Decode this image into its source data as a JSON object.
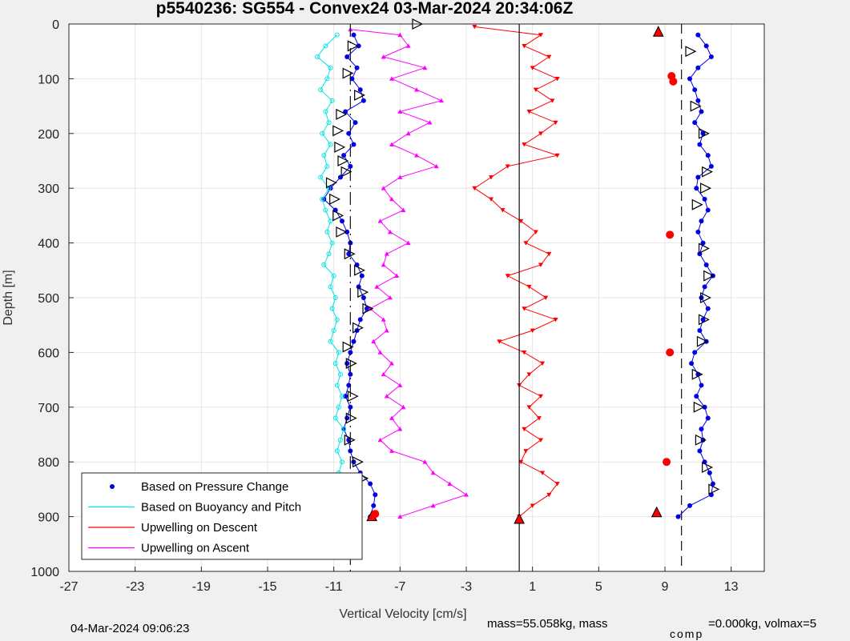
{
  "chart_data": {
    "type": "scatter",
    "title": "p5540236: SG554 - Convex24 03-Mar-2024 20:34:06Z",
    "xlabel": "Vertical Velocity [cm/s]",
    "ylabel": "Depth [m]",
    "xlim": [
      -27,
      15
    ],
    "ylim": [
      0,
      1000
    ],
    "y_reversed": true,
    "grid": true,
    "xticks": [
      -27,
      -23,
      -19,
      -15,
      -11,
      -7,
      -3,
      1,
      5,
      9,
      13
    ],
    "yticks": [
      0,
      100,
      200,
      300,
      400,
      500,
      600,
      700,
      800,
      900,
      1000
    ],
    "reference_lines": [
      {
        "x": -10,
        "style": "dash-dot"
      },
      {
        "x": 0.2,
        "style": "solid"
      },
      {
        "x": 10,
        "style": "dashed"
      }
    ],
    "legend_position": "bottom-left",
    "series": [
      {
        "name": "Based on Pressure Change",
        "color": "#0000e6",
        "marker": "dot",
        "points": [
          [
            -9.8,
            20
          ],
          [
            -9.5,
            40
          ],
          [
            -10.2,
            60
          ],
          [
            -9.6,
            80
          ],
          [
            -9.9,
            100
          ],
          [
            -9.4,
            120
          ],
          [
            -9.2,
            140
          ],
          [
            -10.3,
            160
          ],
          [
            -9.7,
            180
          ],
          [
            -10.1,
            200
          ],
          [
            -9.8,
            220
          ],
          [
            -10.4,
            240
          ],
          [
            -10,
            260
          ],
          [
            -10.6,
            280
          ],
          [
            -11.2,
            300
          ],
          [
            -11.6,
            320
          ],
          [
            -10.9,
            340
          ],
          [
            -10.5,
            360
          ],
          [
            -10.2,
            380
          ],
          [
            -10,
            400
          ],
          [
            -10.1,
            420
          ],
          [
            -9.6,
            440
          ],
          [
            -9.3,
            460
          ],
          [
            -9.5,
            480
          ],
          [
            -9.2,
            500
          ],
          [
            -9,
            520
          ],
          [
            -9.4,
            540
          ],
          [
            -9.6,
            560
          ],
          [
            -9.8,
            580
          ],
          [
            -10,
            600
          ],
          [
            -10.2,
            620
          ],
          [
            -10,
            640
          ],
          [
            -10.1,
            660
          ],
          [
            -10.3,
            680
          ],
          [
            -10,
            700
          ],
          [
            -10.2,
            720
          ],
          [
            -10.4,
            740
          ],
          [
            -10.1,
            760
          ],
          [
            -10,
            780
          ],
          [
            -9.8,
            800
          ],
          [
            -9.4,
            820
          ],
          [
            -8.8,
            840
          ],
          [
            -8.5,
            860
          ],
          [
            -8.6,
            880
          ],
          [
            -8.8,
            900
          ],
          [
            11,
            20
          ],
          [
            11.5,
            40
          ],
          [
            11.8,
            60
          ],
          [
            11,
            80
          ],
          [
            10.5,
            100
          ],
          [
            10.8,
            120
          ],
          [
            11,
            140
          ],
          [
            11.2,
            160
          ],
          [
            10.8,
            180
          ],
          [
            11.3,
            200
          ],
          [
            11.1,
            220
          ],
          [
            11.6,
            240
          ],
          [
            11.8,
            260
          ],
          [
            11,
            280
          ],
          [
            10.9,
            300
          ],
          [
            11.4,
            320
          ],
          [
            11.6,
            340
          ],
          [
            11.2,
            360
          ],
          [
            11,
            380
          ],
          [
            11.3,
            400
          ],
          [
            11.1,
            420
          ],
          [
            11.5,
            440
          ],
          [
            11.9,
            460
          ],
          [
            11.4,
            480
          ],
          [
            11.2,
            500
          ],
          [
            11.6,
            520
          ],
          [
            11.3,
            540
          ],
          [
            11.1,
            560
          ],
          [
            11.5,
            580
          ],
          [
            10.8,
            600
          ],
          [
            10.6,
            620
          ],
          [
            11,
            640
          ],
          [
            11.2,
            660
          ],
          [
            10.9,
            680
          ],
          [
            11.4,
            700
          ],
          [
            11.6,
            720
          ],
          [
            11.2,
            740
          ],
          [
            11.3,
            760
          ],
          [
            11.1,
            780
          ],
          [
            11.4,
            800
          ],
          [
            11.7,
            820
          ],
          [
            11.9,
            840
          ],
          [
            11.8,
            860
          ],
          [
            10.5,
            880
          ],
          [
            9.8,
            900
          ]
        ]
      },
      {
        "name": "Based on Buoyancy and Pitch",
        "color": "#00e5e5",
        "marker": "circle",
        "points": [
          [
            -10.8,
            20
          ],
          [
            -11.5,
            40
          ],
          [
            -12,
            60
          ],
          [
            -11.2,
            80
          ],
          [
            -11.4,
            100
          ],
          [
            -11.8,
            120
          ],
          [
            -11.1,
            140
          ],
          [
            -11.5,
            160
          ],
          [
            -11.3,
            180
          ],
          [
            -11.7,
            200
          ],
          [
            -11.2,
            220
          ],
          [
            -11.6,
            240
          ],
          [
            -11.4,
            260
          ],
          [
            -11.8,
            280
          ],
          [
            -11.3,
            300
          ],
          [
            -11.7,
            320
          ],
          [
            -11.5,
            340
          ],
          [
            -11.2,
            360
          ],
          [
            -11.4,
            380
          ],
          [
            -11.1,
            400
          ],
          [
            -11.3,
            420
          ],
          [
            -11.6,
            440
          ],
          [
            -11,
            460
          ],
          [
            -11.2,
            480
          ],
          [
            -10.9,
            500
          ],
          [
            -11.1,
            520
          ],
          [
            -10.8,
            540
          ],
          [
            -11,
            560
          ],
          [
            -11.2,
            580
          ],
          [
            -10.7,
            600
          ],
          [
            -10.9,
            620
          ],
          [
            -10.6,
            640
          ],
          [
            -10.8,
            660
          ],
          [
            -10.5,
            680
          ],
          [
            -10.7,
            700
          ],
          [
            -10.9,
            720
          ],
          [
            -10.4,
            740
          ],
          [
            -10.6,
            760
          ],
          [
            -10.8,
            780
          ],
          [
            -10.5,
            800
          ],
          [
            -10.7,
            820
          ],
          [
            -10.3,
            840
          ],
          [
            -10.5,
            860
          ],
          [
            -10.4,
            880
          ],
          [
            -10.2,
            900
          ]
        ]
      },
      {
        "name": "Upwelling on Descent",
        "color": "#ff0000",
        "marker": "triangle-down",
        "points": [
          [
            -2.5,
            5
          ],
          [
            1.5,
            20
          ],
          [
            0.5,
            40
          ],
          [
            2,
            60
          ],
          [
            1,
            80
          ],
          [
            2.5,
            100
          ],
          [
            1.2,
            120
          ],
          [
            2.2,
            140
          ],
          [
            0.8,
            160
          ],
          [
            2.4,
            180
          ],
          [
            1.5,
            200
          ],
          [
            0.5,
            220
          ],
          [
            2.5,
            240
          ],
          [
            -0.5,
            260
          ],
          [
            -1.5,
            280
          ],
          [
            -2.5,
            300
          ],
          [
            -1.5,
            320
          ],
          [
            -0.8,
            340
          ],
          [
            0.3,
            360
          ],
          [
            1.2,
            380
          ],
          [
            0.6,
            400
          ],
          [
            2,
            420
          ],
          [
            1.5,
            440
          ],
          [
            -0.5,
            460
          ],
          [
            0.8,
            480
          ],
          [
            1.8,
            500
          ],
          [
            0.5,
            520
          ],
          [
            2.4,
            540
          ],
          [
            1,
            560
          ],
          [
            -1,
            580
          ],
          [
            0.5,
            600
          ],
          [
            1.6,
            620
          ],
          [
            0.8,
            640
          ],
          [
            0.2,
            660
          ],
          [
            1.5,
            680
          ],
          [
            0.8,
            700
          ],
          [
            1.4,
            720
          ],
          [
            0.5,
            740
          ],
          [
            1.5,
            760
          ],
          [
            0.6,
            780
          ],
          [
            0.3,
            800
          ],
          [
            1.6,
            820
          ],
          [
            2.5,
            840
          ],
          [
            2,
            860
          ],
          [
            1,
            880
          ],
          [
            0.2,
            900
          ]
        ]
      },
      {
        "name": "Upwelling on Ascent",
        "color": "#ff00ff",
        "marker": "triangle-up",
        "points": [
          [
            -10,
            10
          ],
          [
            -7,
            20
          ],
          [
            -6.5,
            40
          ],
          [
            -8,
            60
          ],
          [
            -5.5,
            80
          ],
          [
            -7.5,
            100
          ],
          [
            -6,
            120
          ],
          [
            -4.5,
            140
          ],
          [
            -7,
            160
          ],
          [
            -5.2,
            180
          ],
          [
            -6.5,
            200
          ],
          [
            -7.5,
            220
          ],
          [
            -6,
            240
          ],
          [
            -4.8,
            260
          ],
          [
            -7,
            280
          ],
          [
            -8,
            300
          ],
          [
            -7.5,
            320
          ],
          [
            -6.8,
            340
          ],
          [
            -8.2,
            360
          ],
          [
            -7.6,
            380
          ],
          [
            -6.5,
            400
          ],
          [
            -7.8,
            420
          ],
          [
            -8,
            440
          ],
          [
            -7.2,
            460
          ],
          [
            -8.4,
            480
          ],
          [
            -7.6,
            500
          ],
          [
            -8.8,
            520
          ],
          [
            -8,
            540
          ],
          [
            -7.8,
            560
          ],
          [
            -8.6,
            580
          ],
          [
            -8.2,
            600
          ],
          [
            -7.5,
            620
          ],
          [
            -8,
            640
          ],
          [
            -7,
            660
          ],
          [
            -7.8,
            680
          ],
          [
            -6.8,
            700
          ],
          [
            -7.5,
            720
          ],
          [
            -7,
            740
          ],
          [
            -8.2,
            760
          ],
          [
            -7.5,
            780
          ],
          [
            -5.5,
            800
          ],
          [
            -5,
            820
          ],
          [
            -4,
            840
          ],
          [
            -3,
            860
          ],
          [
            -5,
            880
          ],
          [
            -7,
            900
          ]
        ]
      }
    ],
    "markers": {
      "descent_triangles": [
        [
          -6,
          0
        ],
        [
          -9.9,
          40
        ],
        [
          -10.2,
          90
        ],
        [
          -9.5,
          130
        ],
        [
          -10.6,
          165
        ],
        [
          -10.8,
          195
        ],
        [
          -10.7,
          225
        ],
        [
          -10.5,
          250
        ],
        [
          -10.3,
          270
        ],
        [
          -11.2,
          290
        ],
        [
          -11,
          320
        ],
        [
          -10.8,
          350
        ],
        [
          -10.6,
          380
        ],
        [
          -10.1,
          420
        ],
        [
          -9.5,
          450
        ],
        [
          -9.3,
          490
        ],
        [
          -9,
          520
        ],
        [
          -9.6,
          555
        ],
        [
          -10.2,
          590
        ],
        [
          -10,
          620
        ],
        [
          -9.9,
          680
        ],
        [
          -10,
          720
        ],
        [
          -10.1,
          760
        ],
        [
          -9.6,
          800
        ],
        [
          -9.3,
          830
        ],
        [
          10.5,
          50
        ],
        [
          10.8,
          150
        ],
        [
          11.3,
          200
        ],
        [
          11.5,
          270
        ],
        [
          11.4,
          300
        ],
        [
          10.9,
          330
        ],
        [
          11.3,
          410
        ],
        [
          11.6,
          460
        ],
        [
          11.4,
          500
        ],
        [
          11.3,
          540
        ],
        [
          11.2,
          580
        ],
        [
          10.9,
          640
        ],
        [
          11,
          700
        ],
        [
          11.1,
          760
        ],
        [
          11.5,
          810
        ],
        [
          11.9,
          850
        ]
      ],
      "red_up_triangles": [
        [
          8.6,
          15
        ],
        [
          -8.7,
          900
        ],
        [
          0.2,
          905
        ],
        [
          8.5,
          893
        ]
      ],
      "red_dots": [
        [
          9.4,
          95
        ],
        [
          9.5,
          105
        ],
        [
          9.3,
          385
        ],
        [
          9.3,
          600
        ],
        [
          9.1,
          800
        ],
        [
          -8.5,
          895
        ]
      ]
    }
  },
  "footer": {
    "date": "04-Mar-2024 09:06:23",
    "mass_text": "mass=55.058kg, mass",
    "comp_sub": "comp",
    "rest_text": "=0.000kg, volmax=5"
  }
}
